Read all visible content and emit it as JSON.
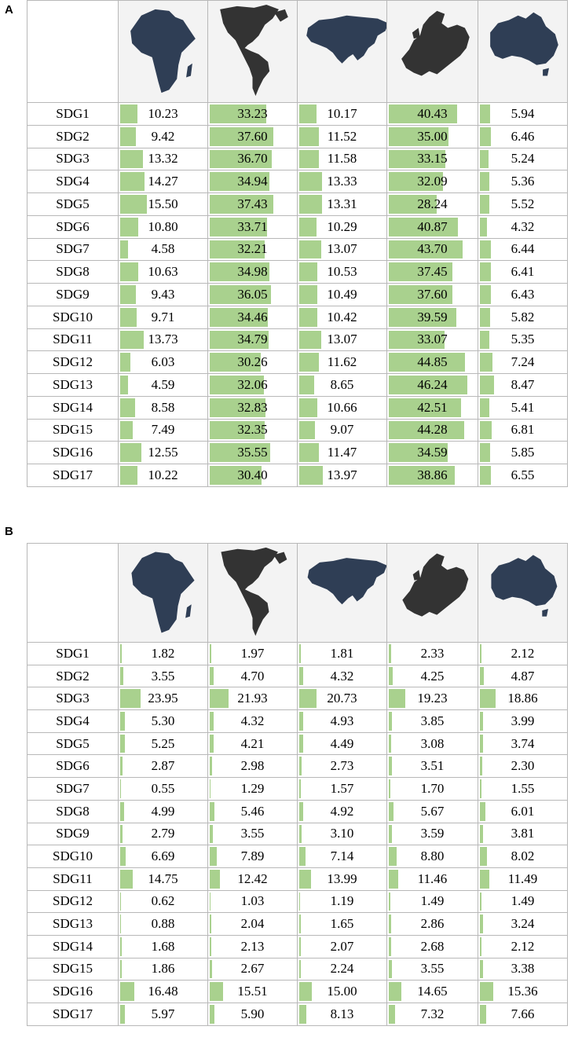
{
  "panels": [
    {
      "label": "A",
      "icons": [
        "africa-map-icon",
        "americas-map-icon",
        "asia-map-icon",
        "europe-map-icon",
        "oceania-map-icon"
      ],
      "bar_color": "#a9d18e",
      "chart_data": {
        "type": "table",
        "columns": [
          "Africa",
          "Americas",
          "Asia",
          "Europe",
          "Oceania"
        ],
        "rows": [
          "SDG1",
          "SDG2",
          "SDG3",
          "SDG4",
          "SDG5",
          "SDG6",
          "SDG7",
          "SDG8",
          "SDG9",
          "SDG10",
          "SDG11",
          "SDG12",
          "SDG13",
          "SDG14",
          "SDG15",
          "SDG16",
          "SDG17"
        ],
        "values": [
          [
            "10.23",
            "33.23",
            "10.17",
            "40.43",
            "5.94"
          ],
          [
            "9.42",
            "37.60",
            "11.52",
            "35.00",
            "6.46"
          ],
          [
            "13.32",
            "36.70",
            "11.58",
            "33.15",
            "5.24"
          ],
          [
            "14.27",
            "34.94",
            "13.33",
            "32.09",
            "5.36"
          ],
          [
            "15.50",
            "37.43",
            "13.31",
            "28.24",
            "5.52"
          ],
          [
            "10.80",
            "33.71",
            "10.29",
            "40.87",
            "4.32"
          ],
          [
            "4.58",
            "32.21",
            "13.07",
            "43.70",
            "6.44"
          ],
          [
            "10.63",
            "34.98",
            "10.53",
            "37.45",
            "6.41"
          ],
          [
            "9.43",
            "36.05",
            "10.49",
            "37.60",
            "6.43"
          ],
          [
            "9.71",
            "34.46",
            "10.42",
            "39.59",
            "5.82"
          ],
          [
            "13.73",
            "34.79",
            "13.07",
            "33.07",
            "5.35"
          ],
          [
            "6.03",
            "30.26",
            "11.62",
            "44.85",
            "7.24"
          ],
          [
            "4.59",
            "32.06",
            "8.65",
            "46.24",
            "8.47"
          ],
          [
            "8.58",
            "32.83",
            "10.66",
            "42.51",
            "5.41"
          ],
          [
            "7.49",
            "32.35",
            "9.07",
            "44.28",
            "6.81"
          ],
          [
            "12.55",
            "35.55",
            "11.47",
            "34.59",
            "5.85"
          ],
          [
            "10.22",
            "30.40",
            "13.97",
            "38.86",
            "6.55"
          ]
        ],
        "bar_scale_max": 50
      }
    },
    {
      "label": "B",
      "icons": [
        "africa-map-icon",
        "americas-map-icon",
        "asia-map-icon",
        "europe-map-icon",
        "oceania-map-icon"
      ],
      "bar_color": "#a9d18e",
      "chart_data": {
        "type": "table",
        "columns": [
          "Africa",
          "Americas",
          "Asia",
          "Europe",
          "Oceania"
        ],
        "rows": [
          "SDG1",
          "SDG2",
          "SDG3",
          "SDG4",
          "SDG5",
          "SDG6",
          "SDG7",
          "SDG8",
          "SDG9",
          "SDG10",
          "SDG11",
          "SDG12",
          "SDG13",
          "SDG14",
          "SDG15",
          "SDG16",
          "SDG17"
        ],
        "values": [
          [
            "1.82",
            "1.97",
            "1.81",
            "2.33",
            "2.12"
          ],
          [
            "3.55",
            "4.70",
            "4.32",
            "4.25",
            "4.87"
          ],
          [
            "23.95",
            "21.93",
            "20.73",
            "19.23",
            "18.86"
          ],
          [
            "5.30",
            "4.32",
            "4.93",
            "3.85",
            "3.99"
          ],
          [
            "5.25",
            "4.21",
            "4.49",
            "3.08",
            "3.74"
          ],
          [
            "2.87",
            "2.98",
            "2.73",
            "3.51",
            "2.30"
          ],
          [
            "0.55",
            "1.29",
            "1.57",
            "1.70",
            "1.55"
          ],
          [
            "4.99",
            "5.46",
            "4.92",
            "5.67",
            "6.01"
          ],
          [
            "2.79",
            "3.55",
            "3.10",
            "3.59",
            "3.81"
          ],
          [
            "6.69",
            "7.89",
            "7.14",
            "8.80",
            "8.02"
          ],
          [
            "14.75",
            "12.42",
            "13.99",
            "11.46",
            "11.49"
          ],
          [
            "0.62",
            "1.03",
            "1.19",
            "1.49",
            "1.49"
          ],
          [
            "0.88",
            "2.04",
            "1.65",
            "2.86",
            "3.24"
          ],
          [
            "1.68",
            "2.13",
            "2.07",
            "2.68",
            "2.12"
          ],
          [
            "1.86",
            "2.67",
            "2.24",
            "3.55",
            "3.38"
          ],
          [
            "16.48",
            "15.51",
            "15.00",
            "14.65",
            "15.36"
          ],
          [
            "5.97",
            "5.90",
            "8.13",
            "7.32",
            "7.66"
          ]
        ],
        "bar_scale_max": 100
      }
    }
  ]
}
